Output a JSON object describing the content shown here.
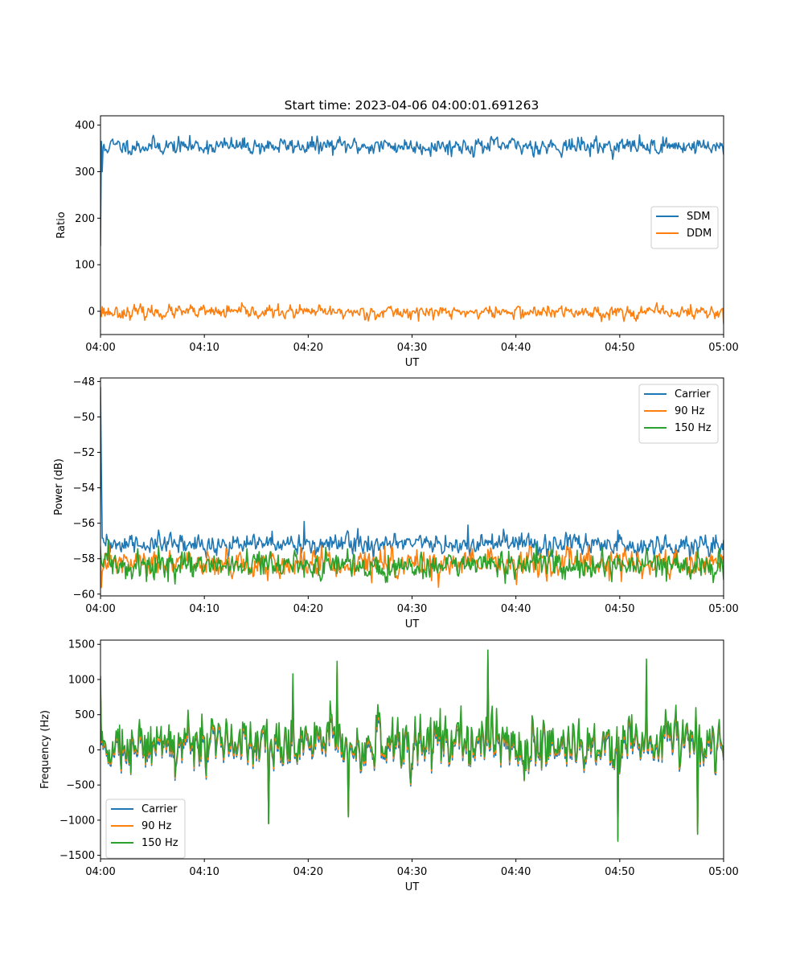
{
  "figure": {
    "title": "Start time: 2023-04-06 04:00:01.691263"
  },
  "colors": {
    "blue": "#1f77b4",
    "orange": "#ff7f0e",
    "green": "#2ca02c"
  },
  "chart_data": [
    {
      "type": "line",
      "title": "Start time: 2023-04-06 04:00:01.691263",
      "xlabel": "UT",
      "ylabel": "Ratio",
      "xlim": [
        "04:00",
        "05:00"
      ],
      "ylim": [
        -50,
        420
      ],
      "xticks": [
        "04:00",
        "04:10",
        "04:20",
        "04:30",
        "04:40",
        "04:50",
        "05:00"
      ],
      "yticks": [
        0,
        100,
        200,
        300,
        400
      ],
      "ytick_labels": [
        "0",
        "100",
        "200",
        "300",
        "400"
      ],
      "legend_position": "center-right",
      "grid": false,
      "series": [
        {
          "name": "SDM",
          "color": "#1f77b4",
          "mean": 355,
          "noise": 26,
          "seed": 11,
          "spikes": [
            [
              0,
              140
            ],
            [
              0.15,
              300
            ],
            [
              0.4,
              345
            ]
          ]
        },
        {
          "name": "DDM",
          "color": "#ff7f0e",
          "mean": -2,
          "noise": 20,
          "seed": 23,
          "spikes": [
            [
              0.2,
              10
            ],
            [
              59.4,
              0
            ],
            [
              60,
              -28
            ]
          ]
        }
      ]
    },
    {
      "type": "line",
      "title": "",
      "xlabel": "UT",
      "ylabel": "Power (dB)",
      "xlim": [
        "04:00",
        "05:00"
      ],
      "ylim": [
        -60.1,
        -47.8
      ],
      "xticks": [
        "04:00",
        "04:10",
        "04:20",
        "04:30",
        "04:40",
        "04:50",
        "05:00"
      ],
      "yticks": [
        -60,
        -58,
        -56,
        -54,
        -52,
        -50,
        -48
      ],
      "ytick_labels": [
        "−60",
        "−58",
        "−56",
        "−54",
        "−52",
        "−50",
        "−48"
      ],
      "legend_position": "top-right",
      "grid": false,
      "series": [
        {
          "name": "Carrier",
          "color": "#1f77b4",
          "mean": -57.2,
          "noise": 0.85,
          "seed": 31,
          "spikes": [
            [
              0,
              -48.3
            ],
            [
              0.12,
              -53
            ],
            [
              0.3,
              -57.1
            ],
            [
              19.6,
              -55.9
            ],
            [
              35.4,
              -56.1
            ],
            [
              24.8,
              -56.3
            ],
            [
              49.8,
              -56.4
            ]
          ]
        },
        {
          "name": "90 Hz",
          "color": "#ff7f0e",
          "mean": -58.3,
          "noise": 1.1,
          "seed": 47,
          "spikes": [
            [
              0,
              -57.3
            ]
          ]
        },
        {
          "name": "150 Hz",
          "color": "#2ca02c",
          "mean": -58.4,
          "noise": 1.1,
          "seed": 59,
          "spikes": [
            [
              0,
              -57.5
            ],
            [
              60,
              -59.2
            ]
          ]
        }
      ]
    },
    {
      "type": "line",
      "title": "",
      "xlabel": "UT",
      "ylabel": "Frequency (Hz)",
      "xlim": [
        "04:00",
        "05:00"
      ],
      "ylim": [
        -1550,
        1560
      ],
      "xticks": [
        "04:00",
        "04:10",
        "04:20",
        "04:30",
        "04:40",
        "04:50",
        "05:00"
      ],
      "yticks": [
        -1500,
        -1000,
        -500,
        0,
        500,
        1000,
        1500
      ],
      "ytick_labels": [
        "−1500",
        "−1000",
        "−500",
        "0",
        "500",
        "1000",
        "1500"
      ],
      "legend_position": "lower-left",
      "grid": false,
      "series": [
        {
          "name": "Carrier",
          "color": "#1f77b4",
          "offset": -80
        },
        {
          "name": "90 Hz",
          "color": "#ff7f0e",
          "offset": -40
        },
        {
          "name": "150 Hz",
          "color": "#2ca02c",
          "offset": 0
        }
      ],
      "base_signal": {
        "mean": 130,
        "noise": 560,
        "seed": 73,
        "spikes": [
          [
            0,
            1050
          ],
          [
            37.3,
            1420
          ],
          [
            49.8,
            -1300
          ],
          [
            57.5,
            -1200
          ],
          [
            16.2,
            -1050
          ],
          [
            52.6,
            1290
          ],
          [
            18.5,
            1080
          ],
          [
            22.8,
            1260
          ],
          [
            23.9,
            -950
          ]
        ]
      }
    }
  ]
}
